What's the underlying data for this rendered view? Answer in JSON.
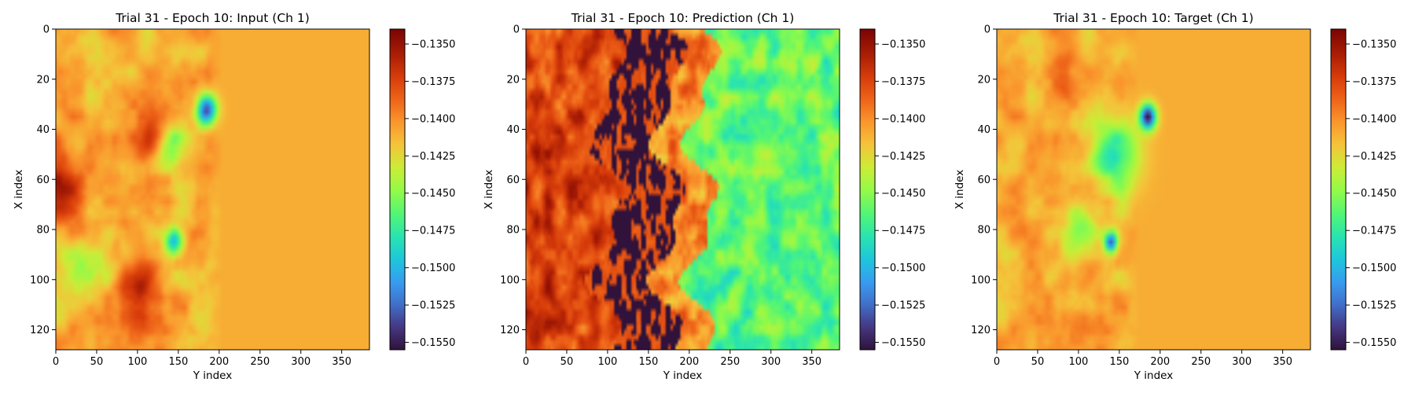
{
  "chart_data": [
    {
      "type": "heatmap",
      "title": "Trial 31 - Epoch 10: Input (Ch 1)",
      "xlabel": "Y index",
      "ylabel": "X index",
      "x_ticks": [
        0,
        50,
        100,
        150,
        200,
        250,
        300,
        350
      ],
      "y_ticks": [
        0,
        20,
        40,
        60,
        80,
        100,
        120
      ],
      "xlim": [
        0,
        383
      ],
      "ylim": [
        127,
        0
      ],
      "colormap": "turbo",
      "colorbar": {
        "range": [
          -0.1555,
          -0.134
        ],
        "ticks": [
          -0.135,
          -0.1375,
          -0.14,
          -0.1425,
          -0.145,
          -0.1475,
          -0.15,
          -0.1525,
          -0.155
        ],
        "tick_labels": [
          "−0.1350",
          "−0.1375",
          "−0.1400",
          "−0.1425",
          "−0.1450",
          "−0.1475",
          "−0.1500",
          "−0.1525",
          "−0.1550"
        ]
      },
      "field": {
        "background": -0.141,
        "mottled_region_end_x": 185,
        "mottle_amplitude": 0.0024,
        "features": [
          {
            "x": 0,
            "y": 62,
            "value": -0.135,
            "radius": 14
          },
          {
            "x": 120,
            "y": 40,
            "value": -0.1355,
            "radius": 12
          },
          {
            "x": 100,
            "y": 105,
            "value": -0.136,
            "radius": 12
          },
          {
            "x": 140,
            "y": 45,
            "value": -0.147,
            "radius": 10
          },
          {
            "x": 185,
            "y": 32,
            "value": -0.154,
            "radius": 6
          },
          {
            "x": 145,
            "y": 85,
            "value": -0.1495,
            "radius": 5
          },
          {
            "x": 40,
            "y": 95,
            "value": -0.145,
            "radius": 12
          }
        ]
      }
    },
    {
      "type": "heatmap",
      "title": "Trial 31 - Epoch 10: Prediction (Ch 1)",
      "xlabel": "Y index",
      "ylabel": "X index",
      "x_ticks": [
        0,
        50,
        100,
        150,
        200,
        250,
        300,
        350
      ],
      "y_ticks": [
        0,
        20,
        40,
        60,
        80,
        100,
        120
      ],
      "xlim": [
        0,
        383
      ],
      "ylim": [
        127,
        0
      ],
      "colormap": "turbo",
      "colorbar": {
        "range": [
          -0.1555,
          -0.134
        ],
        "ticks": [
          -0.135,
          -0.1375,
          -0.14,
          -0.1425,
          -0.145,
          -0.1475,
          -0.15,
          -0.1525,
          -0.155
        ],
        "tick_labels": [
          "−0.1350",
          "−0.1375",
          "−0.1400",
          "−0.1425",
          "−0.1450",
          "−0.1475",
          "−0.1500",
          "−0.1525",
          "−0.1550"
        ]
      },
      "field": {
        "left_band_value": -0.1375,
        "dark_band_center_x": 140,
        "dark_band_value": -0.156,
        "right_region_value": -0.146,
        "mottle_amplitude": 0.0035
      }
    },
    {
      "type": "heatmap",
      "title": "Trial 31 - Epoch 10: Target (Ch 1)",
      "xlabel": "Y index",
      "ylabel": "X index",
      "x_ticks": [
        0,
        50,
        100,
        150,
        200,
        250,
        300,
        350
      ],
      "y_ticks": [
        0,
        20,
        40,
        60,
        80,
        100,
        120
      ],
      "xlim": [
        0,
        383
      ],
      "ylim": [
        127,
        0
      ],
      "colormap": "turbo",
      "colorbar": {
        "range": [
          -0.1555,
          -0.134
        ],
        "ticks": [
          -0.135,
          -0.1375,
          -0.14,
          -0.1425,
          -0.145,
          -0.1475,
          -0.15,
          -0.1525,
          -0.155
        ],
        "tick_labels": [
          "−0.1350",
          "−0.1375",
          "−0.1400",
          "−0.1425",
          "−0.1450",
          "−0.1475",
          "−0.1500",
          "−0.1525",
          "−0.1550"
        ]
      },
      "field": {
        "background": -0.141,
        "mottled_region_end_x": 155,
        "mottle_amplitude": 0.0022,
        "features": [
          {
            "x": 145,
            "y": 50,
            "value": -0.148,
            "radius": 14
          },
          {
            "x": 185,
            "y": 35,
            "value": -0.155,
            "radius": 5
          },
          {
            "x": 140,
            "y": 85,
            "value": -0.152,
            "radius": 4
          },
          {
            "x": 100,
            "y": 80,
            "value": -0.1455,
            "radius": 10
          },
          {
            "x": 80,
            "y": 18,
            "value": -0.138,
            "radius": 10
          }
        ]
      }
    }
  ]
}
